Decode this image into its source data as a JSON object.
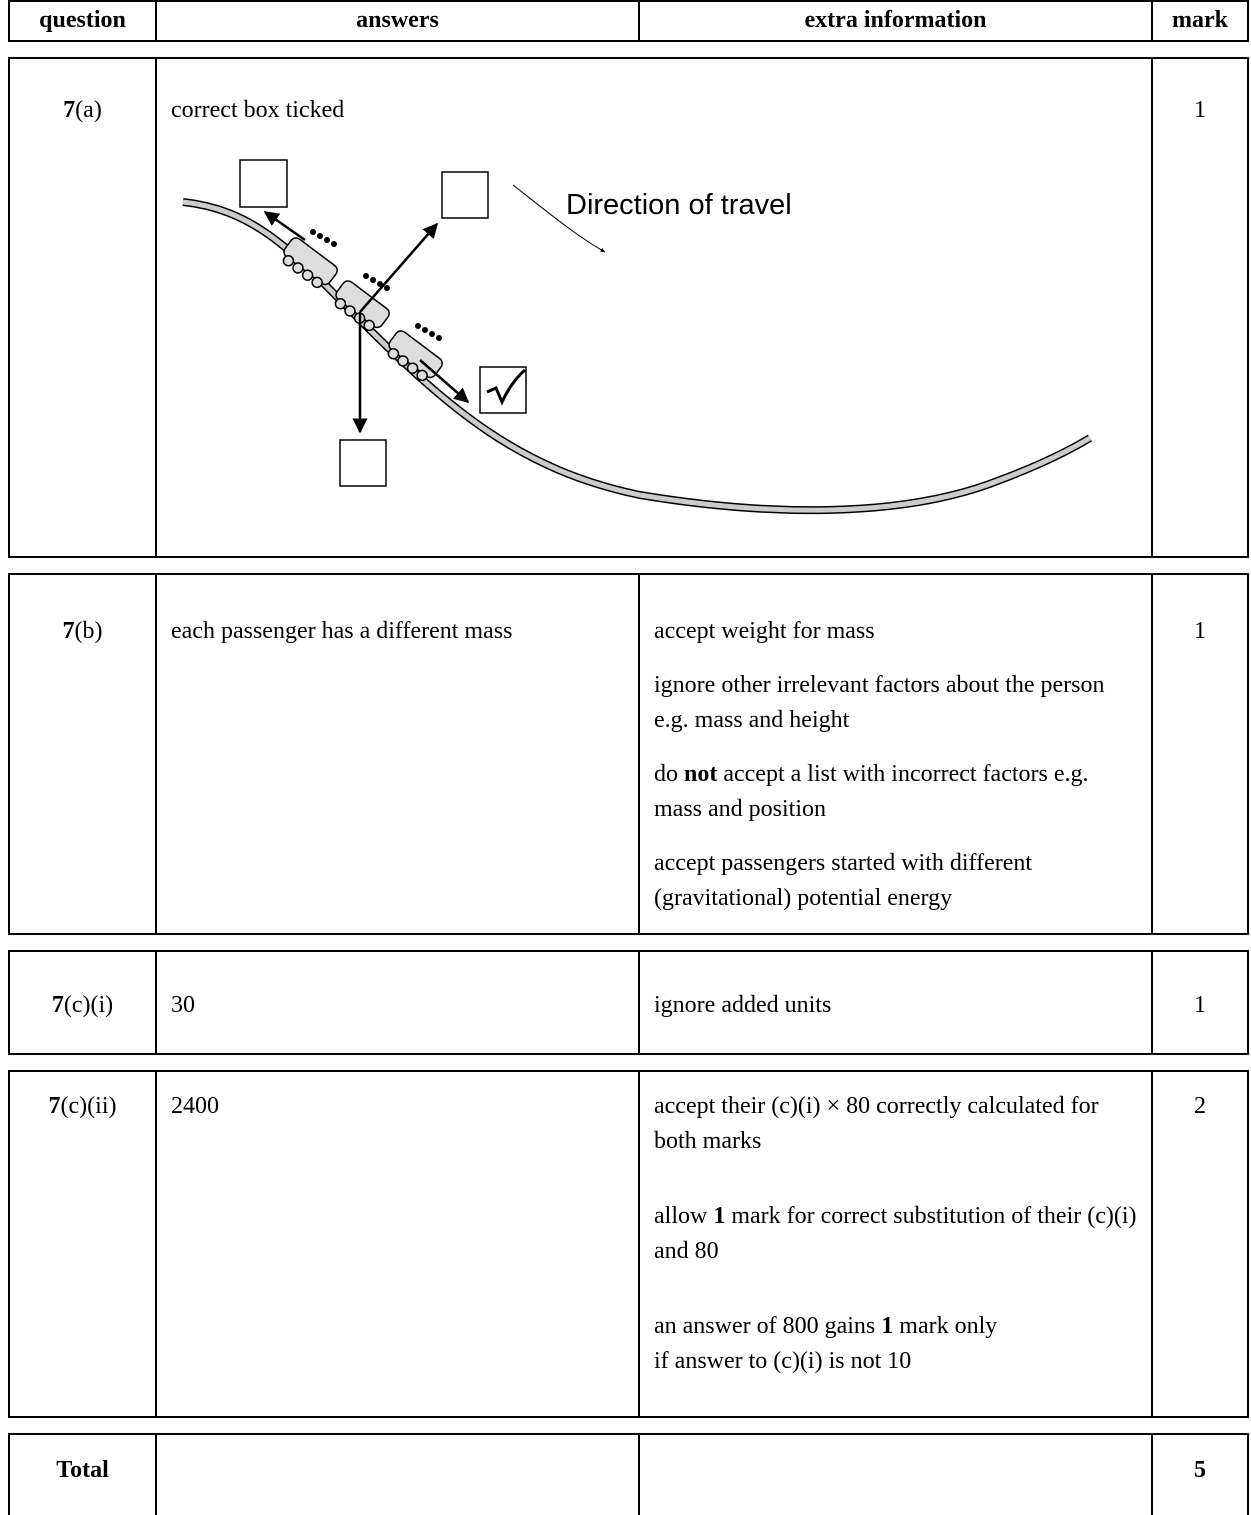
{
  "table": {
    "header": [
      "question",
      "answers",
      "extra information",
      "mark"
    ],
    "rows": [
      {
        "question": [
          "7",
          "(a)"
        ],
        "answers": [
          "correct box ticked"
        ],
        "diagram_label": "Direction of travel",
        "mark": "1"
      },
      {
        "question": [
          "7",
          "(b)"
        ],
        "answers": [
          "each passenger has a different mass"
        ],
        "extra": [
          [
            "accept weight for mass"
          ],
          [
            "ignore other irrelevant factors about the person e.g. mass and height"
          ],
          [
            "do ",
            "not",
            " accept a list with incorrect factors e.g. mass and position"
          ],
          [
            "accept passengers started with different (gravitational) potential energy"
          ]
        ],
        "mark": "1"
      },
      {
        "question": [
          "7",
          "(c)(i)"
        ],
        "answers": [
          "30"
        ],
        "extra": [
          [
            "ignore added units"
          ]
        ],
        "mark": "1"
      },
      {
        "question": [
          "7",
          "(c)(ii)"
        ],
        "answers": [
          "2400"
        ],
        "extra": [
          [
            "accept their (c)(i) × 80 correctly calculated for both marks"
          ],
          [
            "allow ",
            "1",
            " mark for correct substitution of their (c)(i) and 80"
          ],
          [
            "an answer of 800 gains ",
            "1",
            " mark only",
            "if answer to (c)(i) is not 10"
          ]
        ],
        "mark": "2"
      }
    ],
    "total": {
      "label": "Total",
      "mark": "5"
    }
  }
}
